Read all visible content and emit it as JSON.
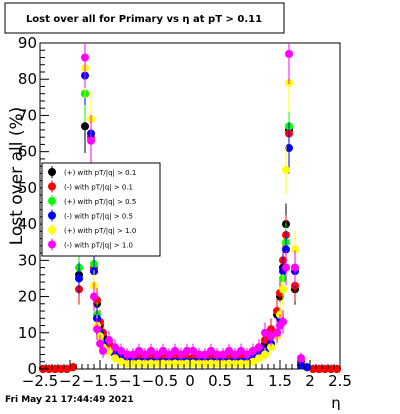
{
  "timestamp": "Fri May 21 17:44:49 2021",
  "chart_data": {
    "type": "scatter",
    "title": "Lost over all for Primary vs  η at pT > 0.11",
    "xlabel": "η",
    "ylabel": "Lost over all (%)",
    "xlim": [
      -2.5,
      2.5
    ],
    "ylim": [
      0,
      90
    ],
    "xticks": [
      -2.5,
      -2,
      -1.5,
      -1,
      -0.5,
      0,
      0.5,
      1,
      1.5,
      2,
      2.5
    ],
    "xtick_labels": [
      "−2.5",
      "−2",
      "−1.5",
      "−1",
      "−0.5",
      "0",
      "0.5",
      "1",
      "1.5",
      "2",
      "2.5"
    ],
    "yticks": [
      0,
      10,
      20,
      30,
      40,
      50,
      60,
      70,
      80,
      90
    ],
    "ytick_labels": [
      "0",
      "10",
      "20",
      "30",
      "40",
      "50",
      "60",
      "70",
      "80",
      "90"
    ],
    "legend_position": "middle-left",
    "series": [
      {
        "name": "(+) with pT/|q| > 0.1",
        "color": "#000000",
        "x": [
          -2.45,
          -2.35,
          -2.25,
          -2.15,
          -2.05,
          -1.95,
          -1.85,
          -1.75,
          -1.65,
          -1.6,
          -1.55,
          -1.5,
          -1.45,
          -1.35,
          -1.25,
          -1.15,
          -1.05,
          -0.95,
          -0.85,
          -0.75,
          -0.65,
          -0.55,
          -0.45,
          -0.35,
          -0.25,
          -0.15,
          -0.05,
          0.05,
          0.15,
          0.25,
          0.35,
          0.45,
          0.55,
          0.65,
          0.75,
          0.85,
          0.95,
          1.05,
          1.15,
          1.25,
          1.35,
          1.45,
          1.5,
          1.55,
          1.6,
          1.65,
          1.75,
          1.85,
          1.95,
          2.05,
          2.15,
          2.25,
          2.35,
          2.45
        ],
        "y": [
          0,
          0,
          0,
          0,
          0,
          0.5,
          26,
          67,
          40,
          27,
          18,
          12,
          9,
          7,
          5,
          4,
          3,
          3,
          3,
          3,
          3,
          3,
          3,
          3,
          3,
          3,
          3,
          3,
          3,
          3,
          3,
          3,
          3,
          3,
          3,
          3,
          4,
          5,
          6,
          7,
          10,
          15,
          20,
          28,
          40,
          66,
          22,
          2,
          0.5,
          0,
          0,
          0,
          0,
          0
        ]
      },
      {
        "name": "(-) with pT/|q| > 0.1",
        "color": "#ff0000",
        "x": [
          -2.45,
          -2.35,
          -2.25,
          -2.15,
          -2.05,
          -1.95,
          -1.85,
          -1.75,
          -1.65,
          -1.6,
          -1.55,
          -1.5,
          -1.45,
          -1.35,
          -1.25,
          -1.15,
          -1.05,
          -0.95,
          -0.85,
          -0.75,
          -0.65,
          -0.55,
          -0.45,
          -0.35,
          -0.25,
          -0.15,
          -0.05,
          0.05,
          0.15,
          0.25,
          0.35,
          0.45,
          0.55,
          0.65,
          0.75,
          0.85,
          0.95,
          1.05,
          1.15,
          1.25,
          1.35,
          1.45,
          1.5,
          1.55,
          1.6,
          1.65,
          1.75,
          1.85,
          1.95,
          2.05,
          2.15,
          2.25,
          2.35,
          2.45
        ],
        "y": [
          0,
          0,
          0,
          0,
          0,
          0.5,
          22,
          76,
          64,
          28,
          19,
          13,
          10,
          7,
          5,
          4,
          3.5,
          3,
          3,
          3,
          3,
          3,
          3,
          3,
          3,
          3,
          3,
          3,
          3,
          3,
          3,
          3,
          3,
          3,
          3,
          3.5,
          4,
          5,
          6,
          8,
          11,
          16,
          21,
          30,
          37,
          65,
          23,
          2,
          0.5,
          0,
          0,
          0,
          0,
          0
        ]
      },
      {
        "name": "(+) with pT/|q| > 0.5",
        "color": "#00ff00",
        "x": [
          -1.85,
          -1.75,
          -1.65,
          -1.6,
          -1.55,
          -1.5,
          -1.45,
          -1.35,
          -1.25,
          -1.15,
          -1.05,
          -0.95,
          -0.85,
          -0.75,
          -0.65,
          -0.55,
          -0.45,
          -0.35,
          -0.25,
          -0.15,
          -0.05,
          0.05,
          0.15,
          0.25,
          0.35,
          0.45,
          0.55,
          0.65,
          0.75,
          0.85,
          0.95,
          1.05,
          1.15,
          1.25,
          1.35,
          1.45,
          1.5,
          1.55,
          1.6,
          1.65,
          1.75,
          1.85,
          1.95
        ],
        "y": [
          28,
          76,
          65,
          29,
          15,
          10,
          7,
          5,
          4,
          3,
          2.5,
          2,
          2,
          2,
          2,
          2,
          2,
          2,
          2,
          2,
          2,
          2,
          2,
          2,
          2,
          2,
          2,
          2,
          2,
          2,
          2.5,
          3,
          4,
          5,
          7,
          10,
          15,
          25,
          35,
          67,
          28,
          1,
          0.5
        ]
      },
      {
        "name": "(-) with pT/|q| > 0.5",
        "color": "#0000ff",
        "x": [
          -1.85,
          -1.75,
          -1.65,
          -1.6,
          -1.55,
          -1.5,
          -1.45,
          -1.35,
          -1.25,
          -1.15,
          -1.05,
          -0.95,
          -0.85,
          -0.75,
          -0.65,
          -0.55,
          -0.45,
          -0.35,
          -0.25,
          -0.15,
          -0.05,
          0.05,
          0.15,
          0.25,
          0.35,
          0.45,
          0.55,
          0.65,
          0.75,
          0.85,
          0.95,
          1.05,
          1.15,
          1.25,
          1.35,
          1.45,
          1.5,
          1.55,
          1.6,
          1.65,
          1.75,
          1.85,
          1.95
        ],
        "y": [
          25,
          81,
          65,
          27,
          14,
          10,
          7,
          5,
          4,
          3,
          2.5,
          2,
          2,
          2,
          2,
          2,
          2,
          2,
          2,
          2,
          2,
          2,
          2,
          2,
          2,
          2,
          2,
          2,
          2,
          2,
          2.5,
          3,
          4,
          5,
          7,
          10,
          14,
          27,
          33,
          61,
          27,
          1,
          0.5
        ]
      },
      {
        "name": "(+) with pT/|q| > 1.0",
        "color": "#ffff00",
        "x": [
          -1.75,
          -1.65,
          -1.6,
          -1.55,
          -1.5,
          -1.45,
          -1.35,
          -1.25,
          -1.15,
          -1.05,
          -0.95,
          -0.85,
          -0.75,
          -0.65,
          -0.55,
          -0.45,
          -0.35,
          -0.25,
          -0.15,
          -0.05,
          0.05,
          0.15,
          0.25,
          0.35,
          0.45,
          0.55,
          0.65,
          0.75,
          0.85,
          0.95,
          1.05,
          1.15,
          1.25,
          1.35,
          1.45,
          1.5,
          1.55,
          1.6,
          1.65,
          1.75,
          1.85
        ],
        "y": [
          83,
          69,
          23,
          12,
          9,
          6,
          5,
          3,
          2,
          1.5,
          1.5,
          1.5,
          1.5,
          1.5,
          1.5,
          1.5,
          1.5,
          1.5,
          1.5,
          1.5,
          1.5,
          1.5,
          1.5,
          1.5,
          1.5,
          1.5,
          1.5,
          1.5,
          1.5,
          1.5,
          2,
          3,
          4,
          6,
          9,
          15,
          22,
          55,
          79,
          33,
          3
        ]
      },
      {
        "name": "(-) with pT/|q| > 1.0",
        "color": "#ff00ff",
        "x": [
          -1.75,
          -1.65,
          -1.6,
          -1.55,
          -1.5,
          -1.45,
          -1.35,
          -1.25,
          -1.15,
          -1.05,
          -0.95,
          -0.85,
          -0.75,
          -0.65,
          -0.55,
          -0.45,
          -0.35,
          -0.25,
          -0.15,
          -0.05,
          0.05,
          0.15,
          0.25,
          0.35,
          0.45,
          0.55,
          0.65,
          0.75,
          0.85,
          0.95,
          1.05,
          1.15,
          1.25,
          1.35,
          1.45,
          1.5,
          1.55,
          1.6,
          1.65,
          1.75,
          1.85
        ],
        "y": [
          86,
          63,
          20,
          11,
          7,
          5,
          8,
          6,
          5,
          4,
          4,
          5,
          4,
          5,
          4,
          5,
          4,
          5,
          4,
          5,
          5,
          4,
          4,
          5,
          4,
          4,
          5,
          4,
          5,
          4,
          5,
          6,
          10,
          9,
          10,
          12,
          13,
          28,
          87,
          28,
          3
        ]
      }
    ]
  }
}
